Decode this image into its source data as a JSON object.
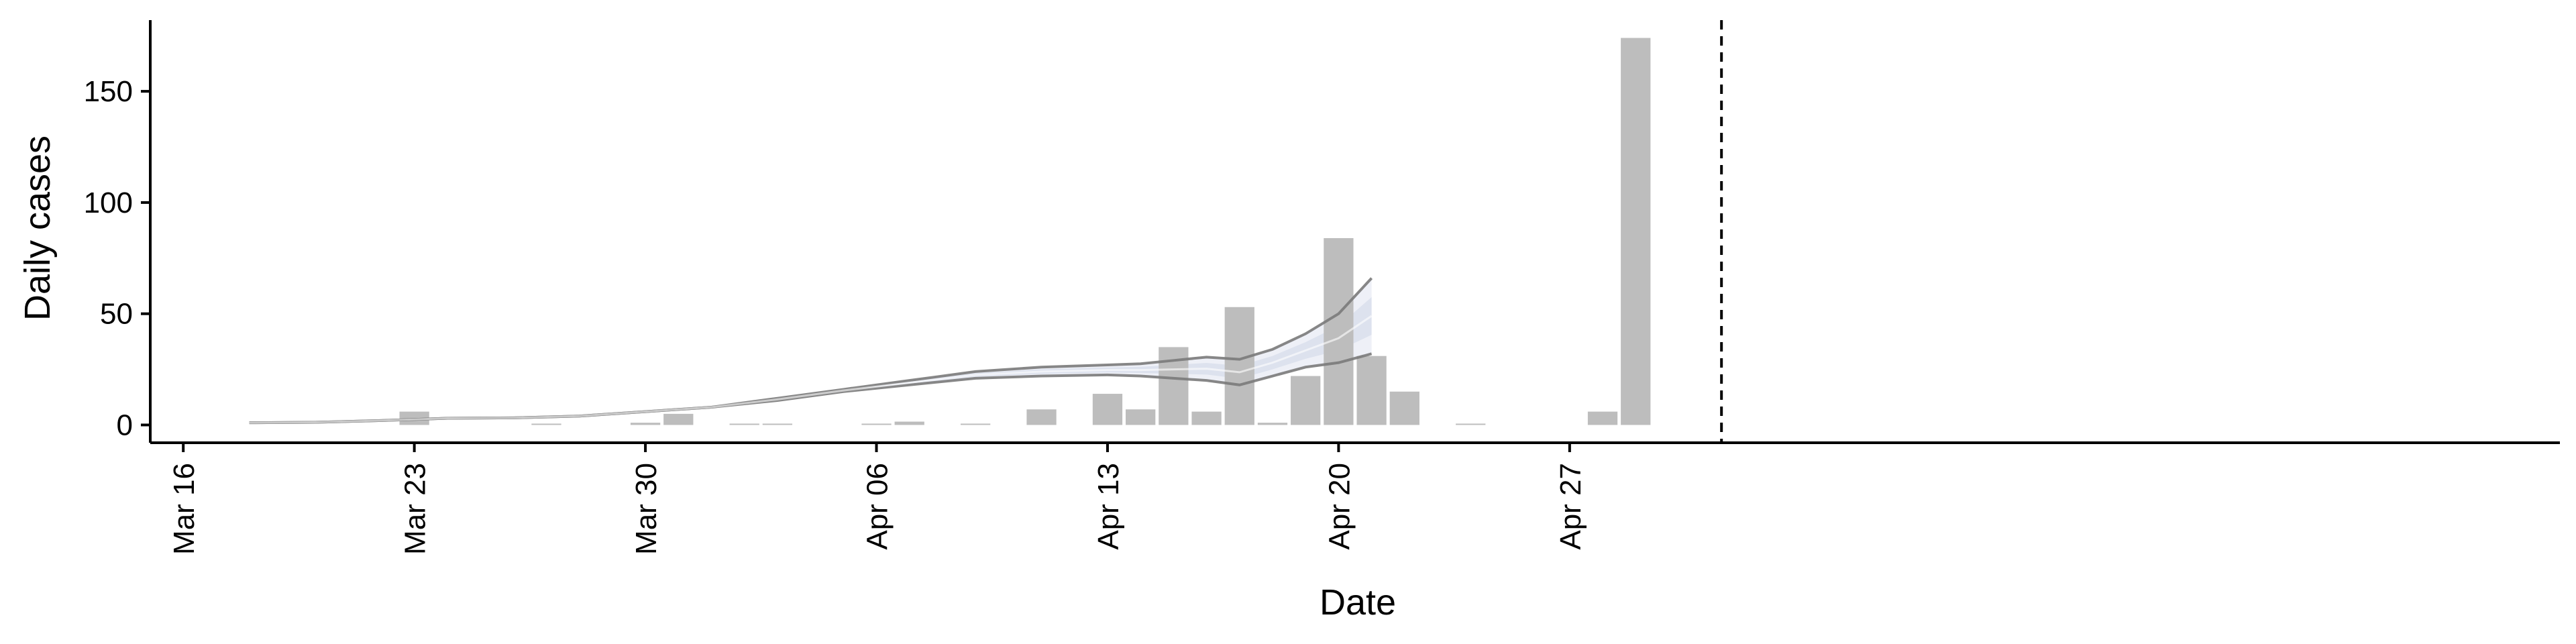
{
  "chart_data": {
    "type": "bar",
    "title": "",
    "xlabel": "Date",
    "ylabel": "Daily cases",
    "ylim": [
      -8,
      182
    ],
    "yticks": [
      0,
      50,
      100,
      150
    ],
    "xlim_day": [
      -1,
      72
    ],
    "xtick_labels": [
      "Mar 16",
      "Mar 23",
      "Mar 30",
      "Apr 06",
      "Apr 13",
      "Apr 20",
      "Apr 27"
    ],
    "xtick_days": [
      0,
      7,
      14,
      21,
      28,
      35,
      42
    ],
    "vline_day": 46.6,
    "bars": {
      "days": [
        7,
        11,
        14,
        15,
        17,
        18,
        21,
        22,
        24,
        26,
        28,
        29,
        30,
        31,
        32,
        33,
        34,
        35,
        36,
        37,
        39,
        43,
        44
      ],
      "values": [
        6,
        0.5,
        1,
        5,
        0.5,
        0.5,
        0.5,
        1.5,
        0.5,
        7,
        14,
        7,
        35,
        6,
        53,
        1,
        22,
        84,
        31,
        15,
        0,
        6,
        174
      ]
    },
    "series": [
      {
        "name": "upper",
        "x": [
          2,
          4,
          6,
          8,
          10,
          12,
          14,
          16,
          18,
          20,
          22,
          24,
          26,
          28,
          29,
          30,
          31,
          32,
          33,
          34,
          35,
          36
        ],
        "values": [
          1,
          1.2,
          2,
          3,
          3.2,
          4,
          6,
          8,
          12,
          16,
          20,
          24,
          26,
          27,
          27.5,
          29,
          30.5,
          29.5,
          34,
          41,
          50,
          66
        ]
      },
      {
        "name": "lower",
        "x": [
          2,
          4,
          6,
          8,
          10,
          12,
          14,
          16,
          18,
          20,
          22,
          24,
          26,
          28,
          29,
          30,
          31,
          32,
          33,
          34,
          35,
          36
        ],
        "values": [
          1,
          1.2,
          2,
          3,
          3.2,
          4,
          6,
          8,
          11,
          15,
          18,
          21,
          22,
          22.5,
          22,
          21,
          20,
          18,
          22,
          26,
          28,
          32
        ]
      },
      {
        "name": "center",
        "x": [
          2,
          4,
          6,
          8,
          10,
          12,
          14,
          16,
          18,
          20,
          22,
          24,
          26,
          28,
          29,
          30,
          31,
          32,
          33,
          34,
          35,
          36
        ],
        "values": [
          1,
          1.2,
          2,
          3,
          3.2,
          4,
          6,
          8,
          11.5,
          15.5,
          19,
          22.5,
          24,
          24.7,
          24.7,
          25,
          25.3,
          23.7,
          28,
          33.5,
          39,
          49
        ]
      }
    ],
    "colors": {
      "bar": "#bdbdbd",
      "line": "#7a7a7a",
      "band_outer": "#eef0f7",
      "band_inner": "#dde2ee",
      "axis": "#000000"
    }
  }
}
